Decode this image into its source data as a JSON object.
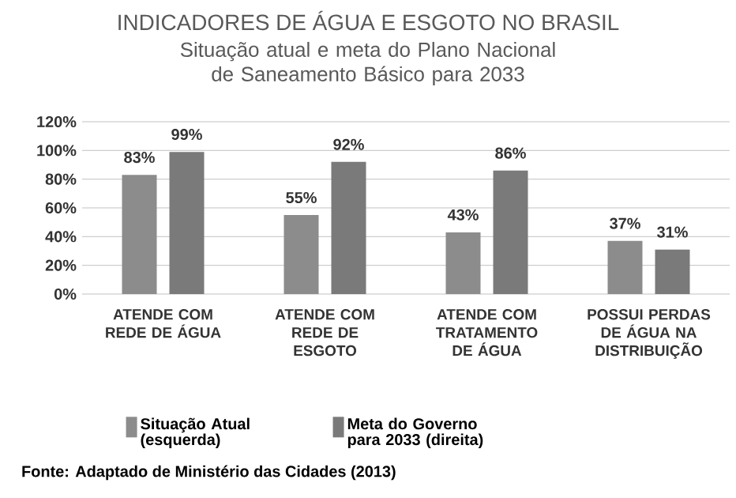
{
  "chart_data": {
    "type": "bar",
    "title": "INDICADORES DE ÁGUA E ESGOTO NO BRASIL",
    "subtitle": "Situação atual e meta do Plano Nacional de Saneamento Básico para 2033",
    "categories": [
      "ATENDE COM REDE DE ÁGUA",
      "ATENDE COM REDE DE ESGOTO",
      "ATENDE COM TRATAMENTO DE ÁGUA",
      "POSSUI PERDAS DE ÁGUA NA DISTRIBUIÇÃO"
    ],
    "series": [
      {
        "name": "Situação Atual (esquerda)",
        "color": "#8c8c8c",
        "values": [
          83,
          55,
          43,
          37
        ],
        "value_labels": [
          "83%",
          "55%",
          "43%",
          "37%"
        ]
      },
      {
        "name": "Meta do Governo para 2033 (direita)",
        "color": "#7a7a7a",
        "values": [
          99,
          92,
          86,
          31
        ],
        "value_labels": [
          "99%",
          "92%",
          "86%",
          "31%"
        ]
      }
    ],
    "ylim": [
      0,
      120
    ],
    "yticks": [
      {
        "value": 0,
        "label": "0%"
      },
      {
        "value": 20,
        "label": "20%"
      },
      {
        "value": 40,
        "label": "40%"
      },
      {
        "value": 60,
        "label": "60%"
      },
      {
        "value": 80,
        "label": "80%"
      },
      {
        "value": 100,
        "label": "100%"
      },
      {
        "value": 120,
        "label": "120%"
      }
    ],
    "grid": "y",
    "legend": "bottom",
    "annotations": [
      "Fonte: Adaptado de Ministério das Cidades (2013)"
    ]
  }
}
